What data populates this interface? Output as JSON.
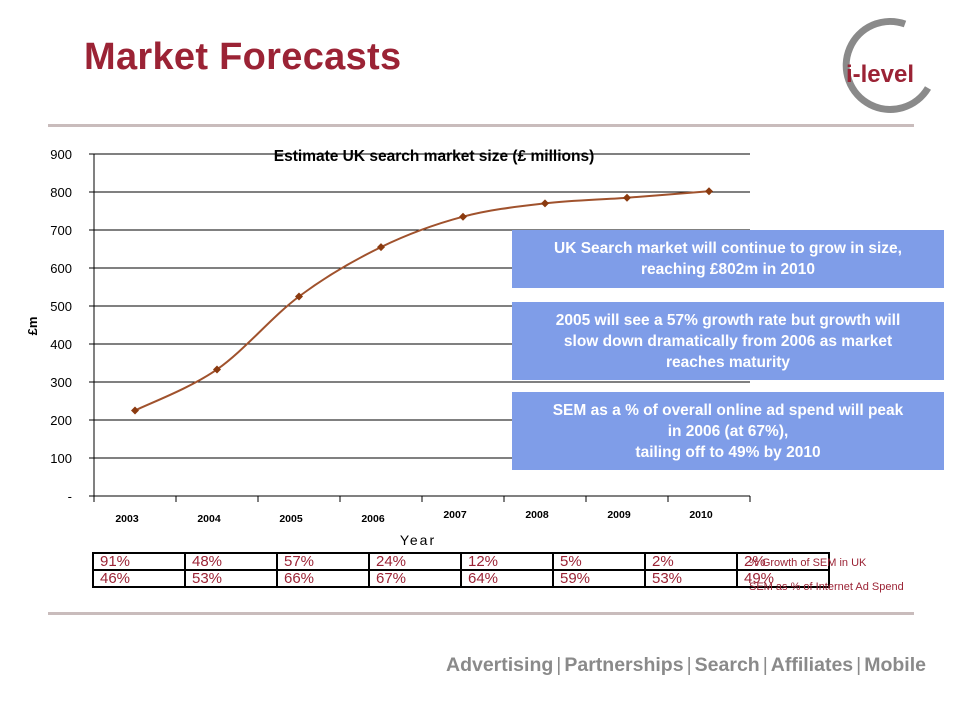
{
  "page": {
    "title": "Market Forecasts"
  },
  "logo": {
    "text": "i-level",
    "icon": "i-level-logo-icon",
    "ring_color": "#8a8a8a"
  },
  "colors": {
    "title": "#9b2335",
    "line": "#a0522d",
    "marker": "#8b3a0f",
    "callout_bg": "#7f9de8",
    "table_text": "#9b2335"
  },
  "chart_data": {
    "type": "line",
    "title": "Estimate UK search market size (£ millions)",
    "xlabel": "Year",
    "ylabel": "£m",
    "categories": [
      "2003",
      "2004",
      "2005",
      "2006",
      "2007",
      "2008",
      "2009",
      "2010"
    ],
    "values": [
      225,
      333,
      525,
      655,
      735,
      770,
      785,
      802
    ],
    "ylim": [
      0,
      900
    ],
    "yticks": [
      0,
      100,
      200,
      300,
      400,
      500,
      600,
      700,
      800,
      900
    ],
    "yticklabels": [
      "-",
      "100",
      "200",
      "300",
      "400",
      "500",
      "600",
      "700",
      "800",
      "900"
    ],
    "grid": true
  },
  "callouts": [
    {
      "lines": [
        "UK Search market will continue to grow in size,",
        "reaching £802m in 2010"
      ]
    },
    {
      "lines": [
        "2005 will see a 57% growth rate but growth will",
        "slow down dramatically from 2006 as market",
        "reaches maturity"
      ]
    },
    {
      "lines": [
        "SEM as a % of overall online ad spend will peak",
        "in 2006 (at 67%),",
        "tailing off to 49% by 2010"
      ]
    }
  ],
  "stats_table": {
    "rows": [
      {
        "label": "% Growth  of SEM in UK",
        "values": [
          "91%",
          "48%",
          "57%",
          "24%",
          "12%",
          "5%",
          "2%",
          "2%"
        ]
      },
      {
        "label": "SEM as % of Internet Ad Spend",
        "values": [
          "46%",
          "53%",
          "66%",
          "67%",
          "64%",
          "59%",
          "53%",
          "49%"
        ]
      }
    ]
  },
  "footer": {
    "items": [
      "Advertising",
      "Partnerships",
      "Search",
      "Affiliates",
      "Mobile"
    ],
    "separator": "|"
  }
}
